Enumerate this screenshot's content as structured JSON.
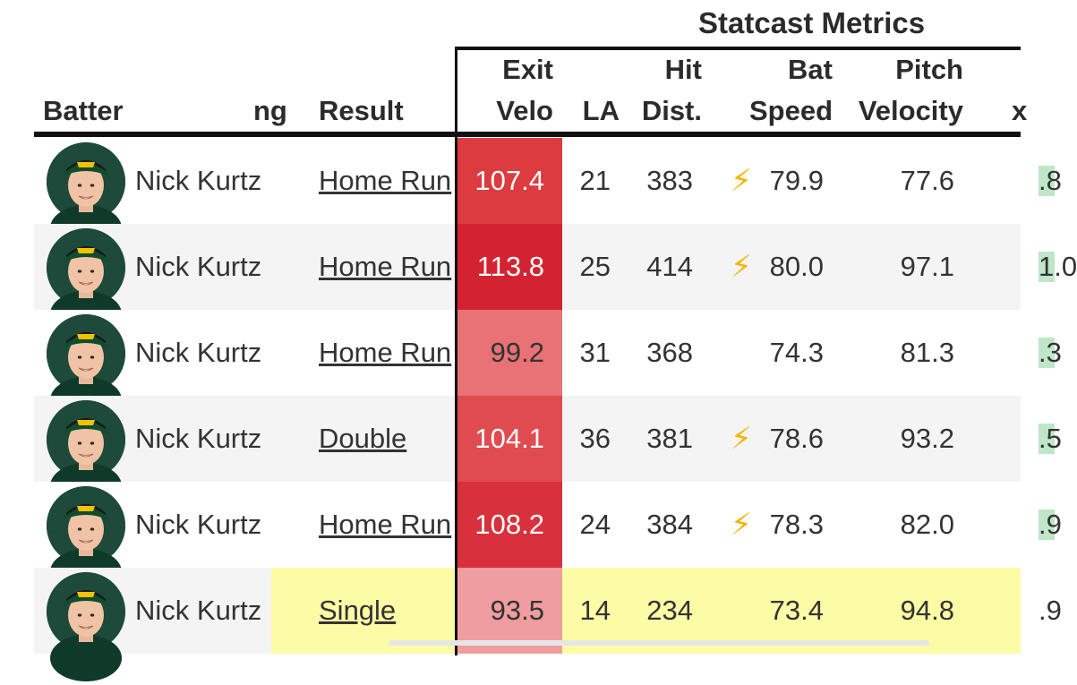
{
  "group_header": "Statcast Metrics",
  "columns": {
    "batter": "Batter",
    "partial": "ng",
    "result": "Result",
    "exit_velo_1": "Exit",
    "exit_velo_2": "Velo",
    "la": "LA",
    "hit_dist_1": "Hit",
    "hit_dist_2": "Dist.",
    "bat_speed_1": "Bat",
    "bat_speed_2": "Speed",
    "pitch_velo_1": "Pitch",
    "pitch_velo_2": "Velocity",
    "partial_x": "x"
  },
  "rows": [
    {
      "batter": "Nick Kurtz",
      "result": "Home Run",
      "exit_velo": "107.4",
      "la": "21",
      "hit_dist": "383",
      "bolt": true,
      "bat_speed": "79.9",
      "pitch_velo": "77.6",
      "x": ".8",
      "ev_color": "#dc3b40",
      "row_bg": "#ffffff"
    },
    {
      "batter": "Nick Kurtz",
      "result": "Home Run",
      "exit_velo": "113.8",
      "la": "25",
      "hit_dist": "414",
      "bolt": true,
      "bat_speed": "80.0",
      "pitch_velo": "97.1",
      "x": "1.0",
      "ev_color": "#d42330",
      "row_bg": "#f4f4f4"
    },
    {
      "batter": "Nick Kurtz",
      "result": "Home Run",
      "exit_velo": "99.2",
      "la": "31",
      "hit_dist": "368",
      "bolt": false,
      "bat_speed": "74.3",
      "pitch_velo": "81.3",
      "x": ".3",
      "ev_color": "#e87275",
      "row_bg": "#ffffff"
    },
    {
      "batter": "Nick Kurtz",
      "result": "Double",
      "exit_velo": "104.1",
      "la": "36",
      "hit_dist": "381",
      "bolt": true,
      "bat_speed": "78.6",
      "pitch_velo": "93.2",
      "x": ".5",
      "ev_color": "#e04b50",
      "row_bg": "#f4f4f4"
    },
    {
      "batter": "Nick Kurtz",
      "result": "Home Run",
      "exit_velo": "108.2",
      "la": "24",
      "hit_dist": "384",
      "bolt": true,
      "bat_speed": "78.3",
      "pitch_velo": "82.0",
      "x": ".9",
      "ev_color": "#d8313b",
      "row_bg": "#ffffff"
    },
    {
      "batter": "Nick Kurtz",
      "result": "Single",
      "exit_velo": "93.5",
      "la": "14",
      "hit_dist": "234",
      "bolt": false,
      "bat_speed": "73.4",
      "pitch_velo": "94.8",
      "x": ".9",
      "ev_color": "#ef9da0",
      "row_bg": "#f4f4f4",
      "highlight": "#fdfca6"
    }
  ]
}
